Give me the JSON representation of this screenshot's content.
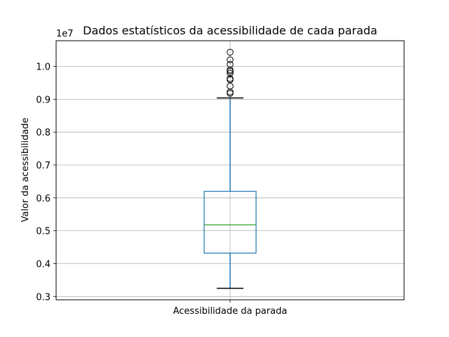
{
  "chart_data": {
    "type": "box",
    "title": "Dados estatísticos da acessibilidade de cada parada",
    "xlabel": "",
    "ylabel": "Valor da acessibilidade",
    "y_offset_label": "1e7",
    "categories": [
      "Acessibilidade da parada"
    ],
    "ylim": [
      0.29,
      1.078
    ],
    "y_ticks": [
      0.3,
      0.4,
      0.5,
      0.6,
      0.7,
      0.8,
      0.9,
      1.0
    ],
    "y_tick_labels": [
      "0.3",
      "0.4",
      "0.5",
      "0.6",
      "0.7",
      "0.8",
      "0.9",
      "1.0"
    ],
    "grid": true,
    "boxes": [
      {
        "whisker_low": 0.325,
        "q1": 0.432,
        "median": 0.518,
        "q3": 0.62,
        "whisker_high": 0.904,
        "outliers": [
          0.918,
          0.922,
          0.94,
          0.959,
          0.963,
          0.979,
          0.985,
          0.989,
          1.006,
          1.02,
          1.043
        ]
      }
    ],
    "colors": {
      "box": "#1f77b4",
      "median": "#2ca02c",
      "grid": "#b0b0b0",
      "axes": "#000000"
    }
  }
}
